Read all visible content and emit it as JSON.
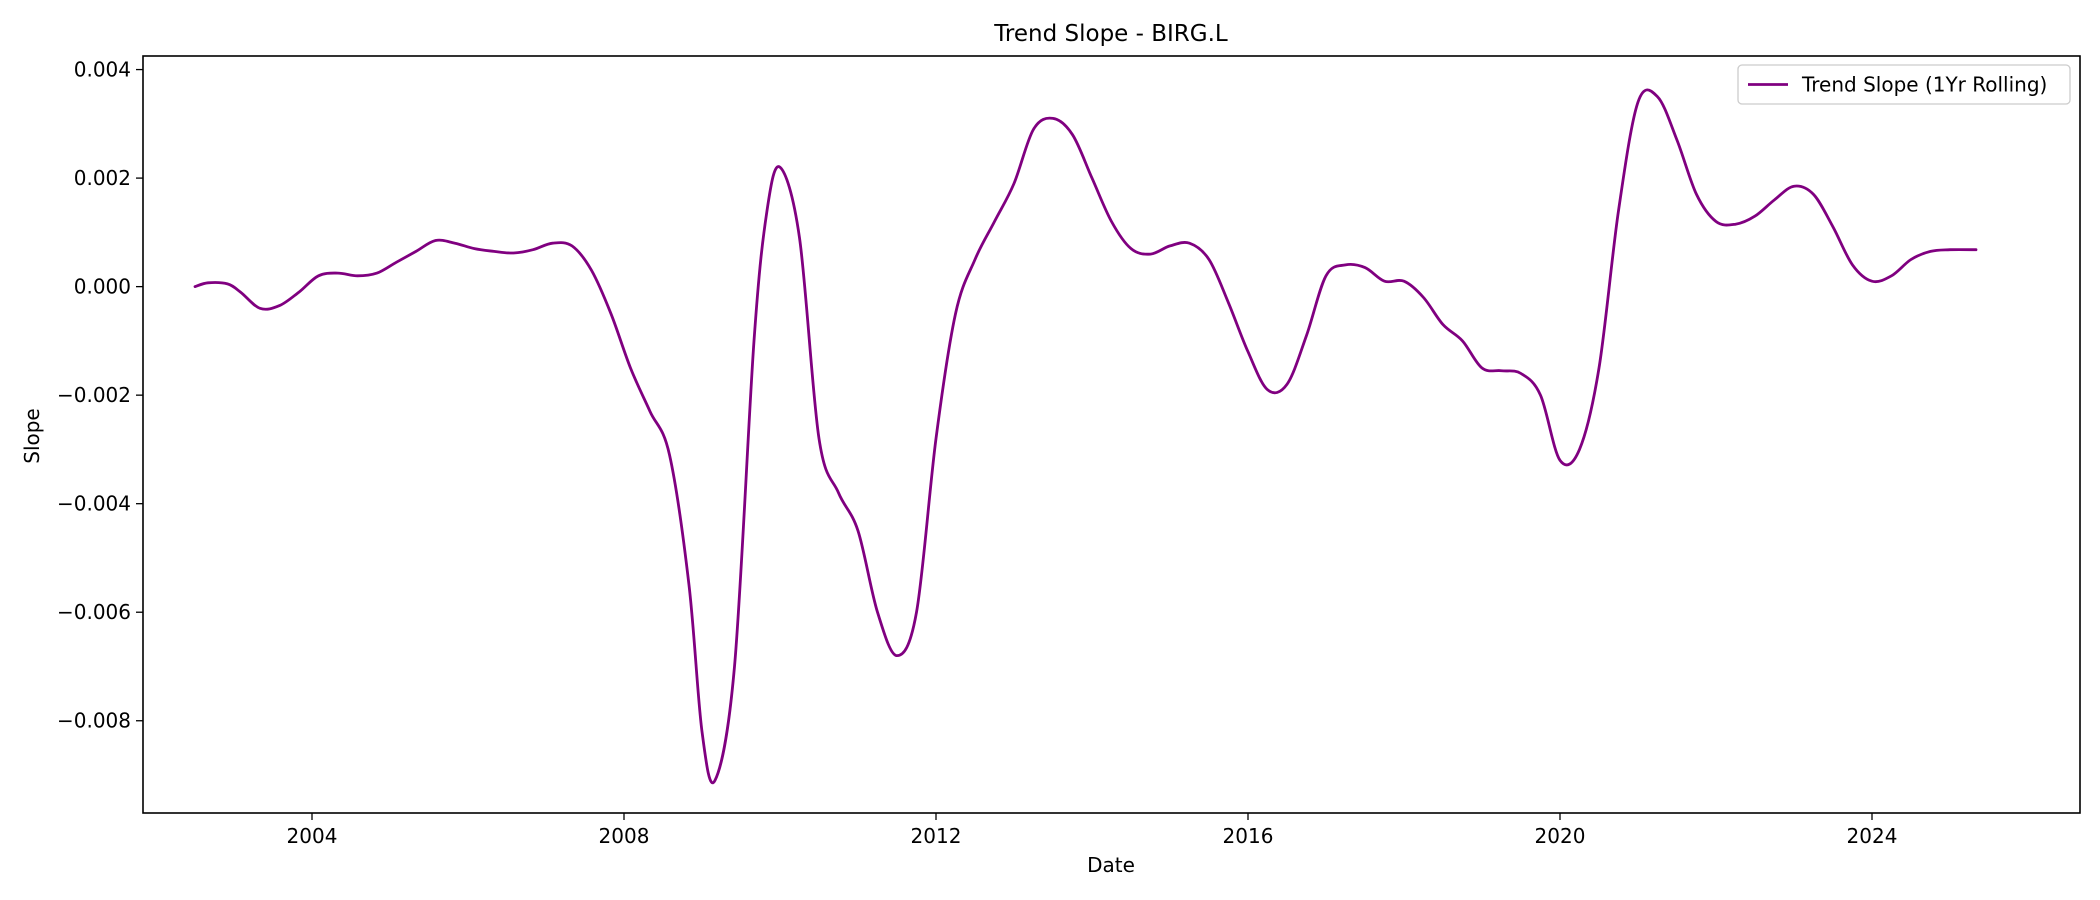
{
  "chart_data": {
    "type": "line",
    "title": "Trend Slope - BIRG.L",
    "xlabel": "Date",
    "ylabel": "Slope",
    "x_ticks": [
      "2004",
      "2008",
      "2012",
      "2016",
      "2020",
      "2024"
    ],
    "y_ticks": [
      "0.004",
      "0.002",
      "0.000",
      "−0.002",
      "−0.004",
      "−0.006",
      "−0.008"
    ],
    "xlim": [
      "2001-11-01",
      "2026-09-01"
    ],
    "ylim": [
      -0.0097,
      0.00425
    ],
    "grid": false,
    "legend": {
      "position": "top-right",
      "entries": [
        "Trend Slope (1Yr Rolling)"
      ]
    },
    "series": [
      {
        "name": "Trend Slope (1Yr Rolling)",
        "color": "#800080",
        "x": [
          "2002-07",
          "2002-09",
          "2002-12",
          "2003-02",
          "2003-05",
          "2003-08",
          "2003-11",
          "2004-02",
          "2004-05",
          "2004-08",
          "2004-11",
          "2005-02",
          "2005-05",
          "2005-08",
          "2005-11",
          "2006-02",
          "2006-05",
          "2006-08",
          "2006-11",
          "2007-02",
          "2007-05",
          "2007-08",
          "2007-11",
          "2008-02",
          "2008-05",
          "2008-08",
          "2008-11",
          "2009-01",
          "2009-03",
          "2009-06",
          "2009-09",
          "2009-11",
          "2010-01",
          "2010-04",
          "2010-07",
          "2010-10",
          "2011-01",
          "2011-04",
          "2011-07",
          "2011-10",
          "2012-01",
          "2012-04",
          "2012-07",
          "2012-10",
          "2013-01",
          "2013-04",
          "2013-07",
          "2013-10",
          "2014-01",
          "2014-04",
          "2014-07",
          "2014-10",
          "2015-01",
          "2015-04",
          "2015-07",
          "2015-10",
          "2016-01",
          "2016-04",
          "2016-07",
          "2016-10",
          "2017-01",
          "2017-04",
          "2017-07",
          "2017-10",
          "2018-01",
          "2018-04",
          "2018-07",
          "2018-10",
          "2019-01",
          "2019-04",
          "2019-07",
          "2019-10",
          "2020-01",
          "2020-04",
          "2020-07",
          "2020-10",
          "2021-01",
          "2021-04",
          "2021-07",
          "2021-10",
          "2022-01",
          "2022-04",
          "2022-07",
          "2022-10",
          "2023-01",
          "2023-04",
          "2023-07",
          "2023-10",
          "2024-01",
          "2024-04",
          "2024-07",
          "2024-10",
          "2025-01",
          "2025-05"
        ],
        "values": [
          0.0,
          7e-05,
          5e-05,
          -0.0001,
          -0.0004,
          -0.00035,
          -0.0001,
          0.0002,
          0.00025,
          0.0002,
          0.00025,
          0.00045,
          0.00065,
          0.00085,
          0.0008,
          0.0007,
          0.00065,
          0.00062,
          0.00068,
          0.0008,
          0.00075,
          0.0003,
          -0.0005,
          -0.0015,
          -0.0023,
          -0.0031,
          -0.0055,
          -0.0082,
          -0.0091,
          -0.007,
          -0.001,
          0.0014,
          0.0022,
          0.0009,
          -0.0028,
          -0.0038,
          -0.0045,
          -0.006,
          -0.0068,
          -0.006,
          -0.0028,
          -0.0005,
          0.0005,
          0.0012,
          0.0019,
          0.0029,
          0.0031,
          0.0028,
          0.002,
          0.0012,
          0.0007,
          0.0006,
          0.00075,
          0.0008,
          0.0005,
          -0.0003,
          -0.0012,
          -0.0019,
          -0.0018,
          -0.0009,
          0.0002,
          0.0004,
          0.00035,
          0.0001,
          0.0001,
          -0.0002,
          -0.0007,
          -0.001,
          -0.0015,
          -0.00155,
          -0.0016,
          -0.002,
          -0.0032,
          -0.003,
          -0.0015,
          0.0014,
          0.0034,
          0.0035,
          0.0027,
          0.0017,
          0.0012,
          0.00115,
          0.0013,
          0.0016,
          0.00185,
          0.0017,
          0.0011,
          0.0004,
          0.0001,
          0.0002,
          0.0005,
          0.00065,
          0.00068,
          0.00068
        ]
      }
    ]
  }
}
